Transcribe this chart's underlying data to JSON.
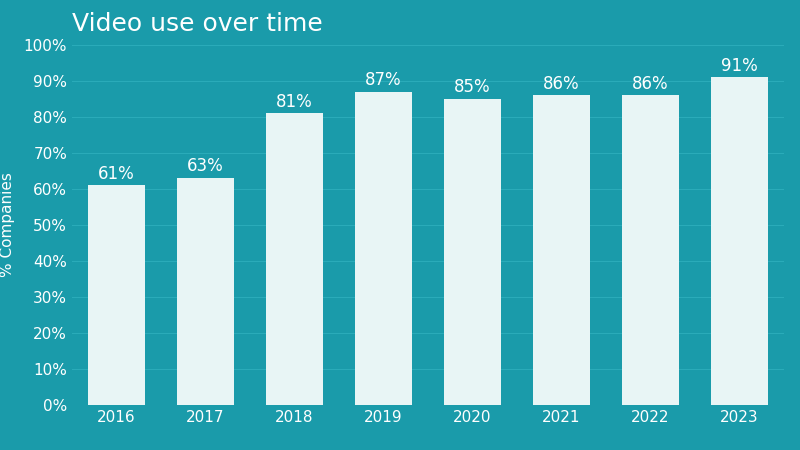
{
  "title": "Video use over time",
  "years": [
    2016,
    2017,
    2018,
    2019,
    2020,
    2021,
    2022,
    2023
  ],
  "values": [
    61,
    63,
    81,
    87,
    85,
    86,
    86,
    91
  ],
  "bar_color": "#e8f5f5",
  "background_color": "#1a9baa",
  "text_color": "#ffffff",
  "grid_color": "#2aabb9",
  "ylabel": "% Companies",
  "ylim": [
    0,
    100
  ],
  "yticks": [
    0,
    10,
    20,
    30,
    40,
    50,
    60,
    70,
    80,
    90,
    100
  ],
  "title_fontsize": 18,
  "label_fontsize": 11,
  "tick_fontsize": 11,
  "bar_label_fontsize": 12
}
